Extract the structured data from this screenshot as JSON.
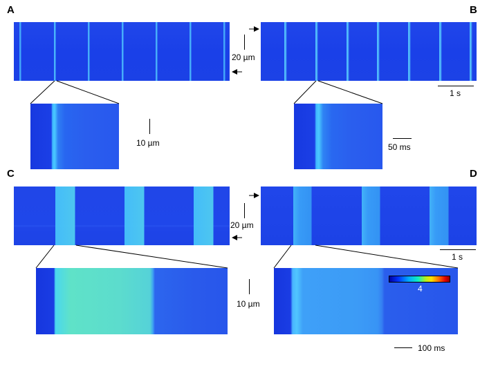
{
  "panels": {
    "a": "A",
    "b": "B",
    "c": "C",
    "d": "D"
  },
  "scale_labels": {
    "top_vertical": "20 µm",
    "top_time": "1 s",
    "inset_top_vertical": "10 µm",
    "inset_top_time": "50 ms",
    "bottom_vertical": "20 µm",
    "bottom_time": "1 s",
    "inset_bottom_vertical": "10 µm",
    "inset_bottom_time": "100 ms"
  },
  "colorbar": {
    "max_label": "4"
  },
  "colors": {
    "background_blue": "#1a3fe6",
    "signal_cyan": "#3fc8ff",
    "signal_green": "#5ee2b0"
  }
}
